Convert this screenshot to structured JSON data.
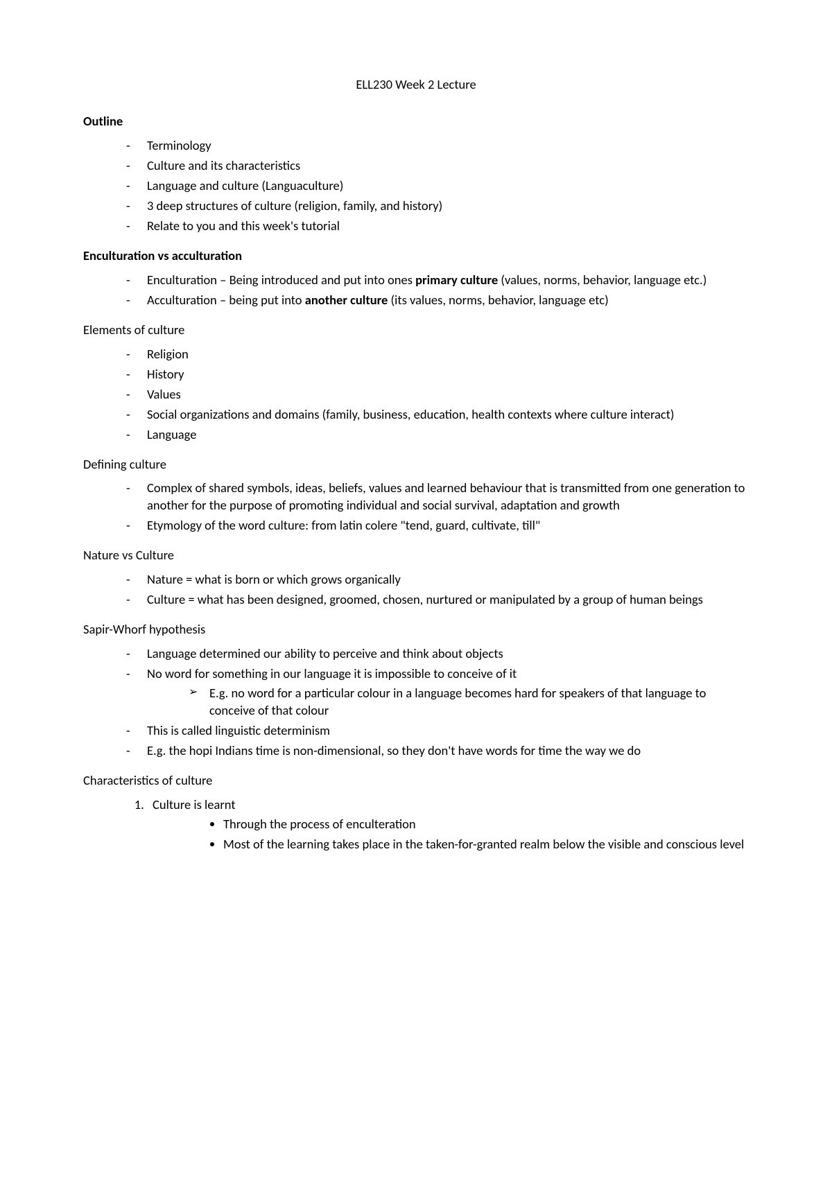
{
  "title": "ELL230 Week 2 Lecture",
  "sections": {
    "outline": {
      "heading": "Outline",
      "items": [
        "Terminology",
        "Culture and its characteristics",
        "Language and culture (Languaculture)",
        "3 deep structures of culture (religion, family, and history)",
        "Relate to you and this week's tutorial"
      ]
    },
    "enculturation": {
      "heading": "Enculturation vs acculturation",
      "item1_pre": "Enculturation – Being introduced and put into ones ",
      "item1_bold": "primary culture",
      "item1_post": " (values, norms, behavior, language etc.)",
      "item2_pre": "Acculturation – being put into ",
      "item2_bold": "another culture",
      "item2_post": " (its values, norms, behavior, language etc)"
    },
    "elements": {
      "heading": "Elements of culture",
      "items": [
        "Religion",
        "History",
        "Values",
        "Social organizations and domains (family, business, education, health contexts where culture interact)",
        "Language"
      ]
    },
    "defining": {
      "heading": "Defining culture",
      "items": [
        "Complex of shared symbols, ideas, beliefs, values and learned behaviour that is transmitted from one generation to another for the purpose of promoting individual and social survival, adaptation and growth",
        "Etymology of the word culture: from latin colere \"tend, guard, cultivate, till\""
      ]
    },
    "nature": {
      "heading": "Nature vs Culture",
      "items": [
        "Nature = what is born or which grows organically",
        "Culture = what has been designed, groomed, chosen, nurtured or manipulated by a group of human beings"
      ]
    },
    "sapir": {
      "heading": "Sapir-Whorf hypothesis",
      "item1": "Language determined our ability to perceive and think about objects",
      "item2": "No word for something in our language it is impossible to conceive of it",
      "sub1": "E.g. no word for a particular colour in a language becomes hard for speakers of that language to conceive of that colour",
      "item3": "This is called linguistic determinism",
      "item4": "E.g. the hopi Indians time is non-dimensional, so they don't have words for time the way we do"
    },
    "characteristics": {
      "heading": "Characteristics of culture",
      "num1": "Culture is learnt",
      "bullet1": "Through the process of enculteration",
      "bullet2": "Most of the learning takes place in the taken-for-granted realm below the visible and conscious level"
    }
  }
}
